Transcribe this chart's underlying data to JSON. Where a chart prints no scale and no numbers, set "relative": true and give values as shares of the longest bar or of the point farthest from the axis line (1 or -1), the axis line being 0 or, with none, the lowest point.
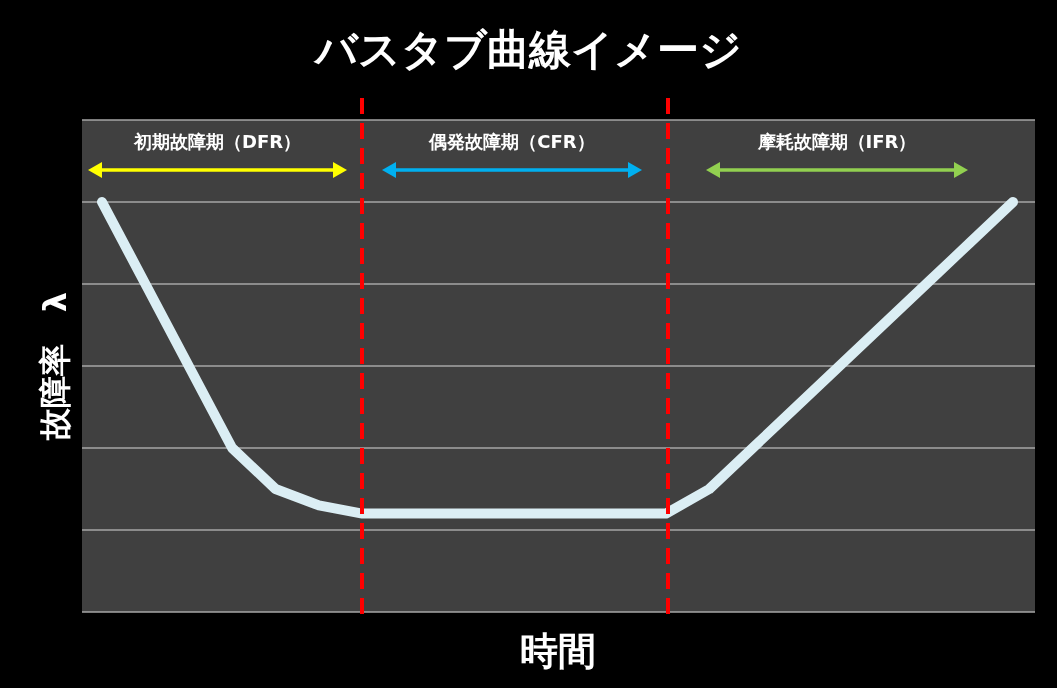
{
  "chart_data": {
    "type": "line",
    "title": "バスタブ曲線イメージ",
    "xlabel": "時間",
    "ylabel": "故障率　λ",
    "relative": true,
    "grid": "y",
    "marker": "none",
    "line_style": "solid",
    "categories": [
      null,
      null,
      null,
      null,
      null,
      null,
      null,
      null,
      null,
      null,
      null,
      null,
      null,
      null,
      null,
      null,
      null,
      null,
      null,
      null,
      null,
      null
    ],
    "series": [
      {
        "color": "#dbeef4",
        "values": [
          1,
          0.8,
          0.6,
          0.4,
          0.3,
          0.26,
          0.24,
          0.24,
          0.24,
          0.24,
          0.24,
          0.24,
          0.24,
          0.24,
          0.3,
          0.4,
          0.5,
          0.6,
          0.7,
          0.8,
          0.9,
          1
        ]
      }
    ],
    "annotations": [
      "初期故障期（DFR）",
      "偶発故障期（CFR）",
      "摩耗故障期（IFR）"
    ]
  }
}
